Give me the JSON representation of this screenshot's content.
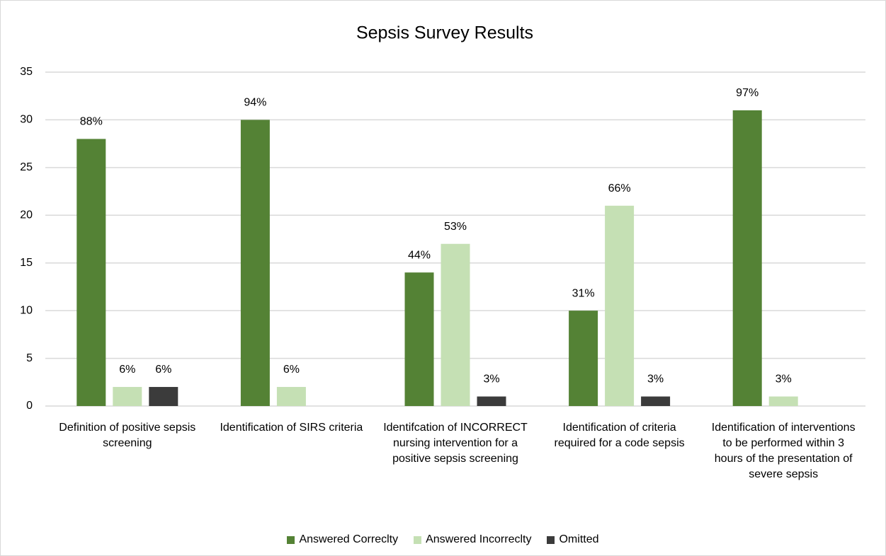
{
  "chart_data": {
    "type": "bar",
    "title": "Sepsis Survey Results",
    "categories": [
      "Definition of positive sepsis screening",
      "Identification of SIRS criteria",
      "Identifcation of INCORRECT nursing intervention for a positive sepsis screening",
      "Identification of criteria required for a code sepsis",
      "Identification of interventions to be performed within 3 hours of the presentation of severe sepsis"
    ],
    "series": [
      {
        "name": "Answered Correclty",
        "color": "#548235",
        "values": [
          28,
          30,
          14,
          10,
          31
        ],
        "percent_labels": [
          "88%",
          "94%",
          "44%",
          "31%",
          "97%"
        ]
      },
      {
        "name": "Answered Incorreclty",
        "color": "#c5e0b4",
        "values": [
          2,
          2,
          17,
          21,
          1
        ],
        "percent_labels": [
          "6%",
          "6%",
          "53%",
          "66%",
          "3%"
        ]
      },
      {
        "name": "Omitted",
        "color": "#3b3b3b",
        "values": [
          2,
          null,
          1,
          1,
          null
        ],
        "percent_labels": [
          "6%",
          null,
          "3%",
          "3%",
          null
        ]
      }
    ],
    "ylim": [
      0,
      35
    ],
    "yticks": [
      0,
      5,
      10,
      15,
      20,
      25,
      30,
      35
    ],
    "grid": true,
    "legend": "bottom"
  }
}
